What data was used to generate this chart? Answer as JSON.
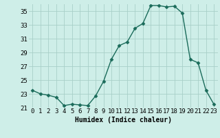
{
  "x": [
    0,
    1,
    2,
    3,
    4,
    5,
    6,
    7,
    8,
    9,
    10,
    11,
    12,
    13,
    14,
    15,
    16,
    17,
    18,
    19,
    20,
    21,
    22,
    23
  ],
  "y": [
    23.5,
    23.0,
    22.8,
    22.5,
    21.3,
    21.5,
    21.4,
    21.3,
    22.7,
    24.8,
    28.0,
    30.0,
    30.5,
    32.5,
    33.2,
    35.8,
    35.8,
    35.6,
    35.7,
    34.7,
    28.0,
    27.5,
    23.5,
    21.5
  ],
  "line_color": "#1a6b5a",
  "marker": "D",
  "marker_size": 2.5,
  "line_width": 1.0,
  "bg_color": "#ceeee8",
  "grid_color": "#a8cfc8",
  "xlabel": "Humidex (Indice chaleur)",
  "xlabel_fontsize": 7,
  "tick_fontsize": 6.5,
  "ylim": [
    21,
    36
  ],
  "yticks": [
    21,
    23,
    25,
    27,
    29,
    31,
    33,
    35
  ],
  "xticks": [
    0,
    1,
    2,
    3,
    4,
    5,
    6,
    7,
    8,
    9,
    10,
    11,
    12,
    13,
    14,
    15,
    16,
    17,
    18,
    19,
    20,
    21,
    22,
    23
  ],
  "xtick_labels": [
    "0",
    "1",
    "2",
    "3",
    "4",
    "5",
    "6",
    "7",
    "8",
    "9",
    "10",
    "11",
    "12",
    "13",
    "14",
    "15",
    "16",
    "17",
    "18",
    "19",
    "20",
    "21",
    "22",
    "23"
  ]
}
